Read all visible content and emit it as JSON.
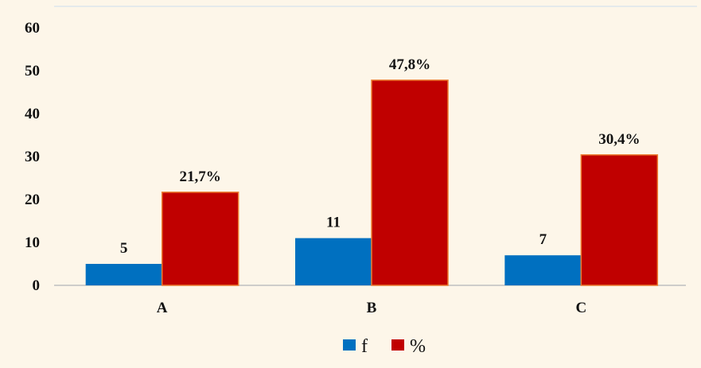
{
  "chart_data": {
    "type": "bar",
    "categories": [
      "A",
      "B",
      "C"
    ],
    "series": [
      {
        "name": "f",
        "values": [
          5,
          11,
          7
        ],
        "labels": [
          "5",
          "11",
          "7"
        ],
        "color": "#0070c0"
      },
      {
        "name": "%",
        "values": [
          21.7,
          47.8,
          30.4
        ],
        "labels": [
          "21,7%",
          "47,8%",
          "30,4%"
        ],
        "color": "#c00000",
        "border_color": "#ed7d31"
      }
    ],
    "ylim": [
      0,
      60
    ],
    "yticks": [
      "0",
      "10",
      "20",
      "30",
      "40",
      "50",
      "60"
    ],
    "ytick_values": [
      0,
      10,
      20,
      30,
      40,
      50,
      60
    ],
    "title": "",
    "xlabel": "",
    "ylabel": "",
    "grid": false,
    "legend_position": "bottom",
    "background": "#fdf6e9"
  }
}
